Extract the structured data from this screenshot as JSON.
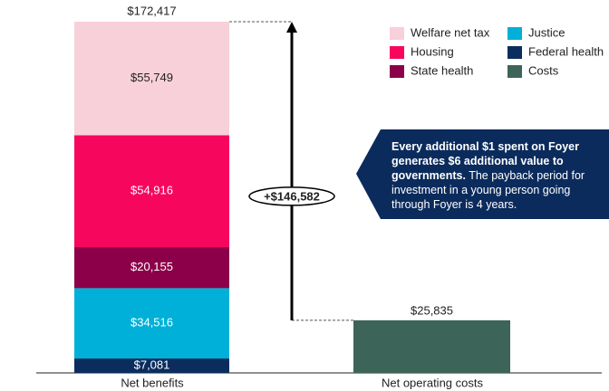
{
  "chart_data": {
    "type": "stacked-bar",
    "categories": [
      "Net benefits",
      "Net operating costs"
    ],
    "series": [
      {
        "name": "Federal health",
        "color": "#0b2d5e",
        "values": [
          7081,
          null
        ],
        "value_labels": [
          "$7,081",
          null
        ]
      },
      {
        "name": "Justice",
        "color": "#00b0d8",
        "values": [
          34516,
          null
        ],
        "value_labels": [
          "$34,516",
          null
        ]
      },
      {
        "name": "State health",
        "color": "#8c004a",
        "values": [
          20155,
          null
        ],
        "value_labels": [
          "$20,155",
          null
        ]
      },
      {
        "name": "Housing",
        "color": "#f7065e",
        "values": [
          54916,
          null
        ],
        "value_labels": [
          "$54,916",
          null
        ]
      },
      {
        "name": "Welfare net tax",
        "color": "#f8d0d9",
        "values": [
          55749,
          null
        ],
        "value_labels": [
          "$55,749",
          null
        ]
      },
      {
        "name": "Costs",
        "color": "#3d6459",
        "values": [
          null,
          25835
        ],
        "value_labels": [
          null,
          "$25,835"
        ]
      }
    ],
    "total": {
      "value": 172417,
      "label": "$172,417"
    },
    "difference": {
      "value": 146582,
      "label": "+$146,582"
    },
    "callout": {
      "bold": "Every additional $1 spent on Foyer generates $6 additional value to governments.",
      "text": "The payback period for investment in a young person going through Foyer is 4 years."
    }
  }
}
